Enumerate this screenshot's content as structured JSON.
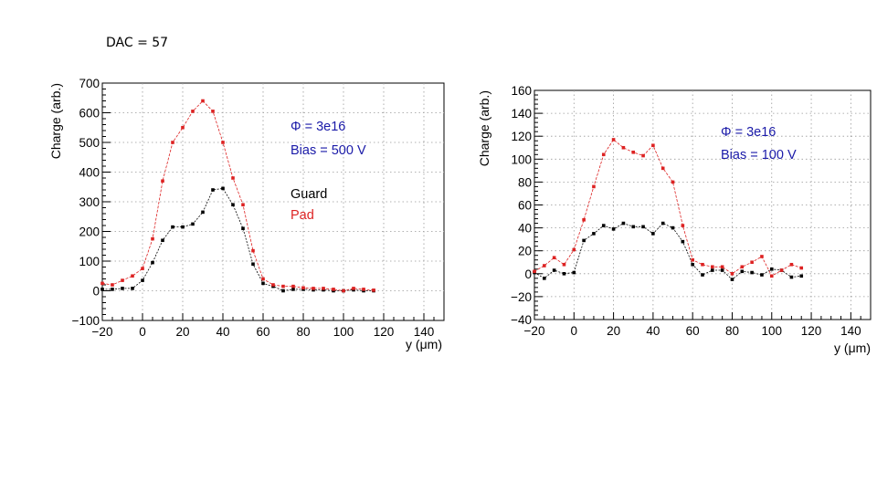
{
  "slide": {
    "label": "DAC = 57"
  },
  "chart_data": [
    {
      "type": "line",
      "title": "",
      "xlabel": "y (μm)",
      "ylabel": "Charge (arb.)",
      "xlim": [
        -20,
        150
      ],
      "ylim": [
        -100,
        700
      ],
      "xticks": [
        -20,
        0,
        20,
        40,
        60,
        80,
        100,
        120,
        140
      ],
      "yticks": [
        -100,
        0,
        100,
        200,
        300,
        400,
        500,
        600,
        700
      ],
      "grid": true,
      "annotations": [
        {
          "text": "Φ = 3e16",
          "color": "#1a1aa8"
        },
        {
          "text": "Bias = 500 V",
          "color": "#1a1aa8"
        }
      ],
      "legend": [
        "Guard",
        "Pad"
      ],
      "series": [
        {
          "name": "Guard",
          "color": "#000000",
          "x": [
            -20,
            -15,
            -10,
            -5,
            0,
            5,
            10,
            15,
            20,
            25,
            30,
            35,
            40,
            45,
            50,
            55,
            60,
            65,
            70,
            75,
            80,
            85,
            90,
            95,
            100,
            105,
            110,
            115
          ],
          "y": [
            5,
            5,
            8,
            8,
            35,
            95,
            170,
            215,
            215,
            225,
            265,
            340,
            345,
            290,
            210,
            90,
            25,
            15,
            0,
            5,
            5,
            3,
            3,
            0,
            0,
            3,
            0,
            0
          ]
        },
        {
          "name": "Pad",
          "color": "#dd2222",
          "x": [
            -20,
            -15,
            -10,
            -5,
            0,
            5,
            10,
            15,
            20,
            25,
            30,
            35,
            40,
            45,
            50,
            55,
            60,
            65,
            70,
            75,
            80,
            85,
            90,
            95,
            100,
            105,
            110,
            115
          ],
          "y": [
            25,
            20,
            35,
            50,
            75,
            175,
            370,
            500,
            550,
            605,
            640,
            605,
            500,
            380,
            290,
            135,
            40,
            20,
            15,
            15,
            10,
            8,
            8,
            5,
            0,
            8,
            5,
            2
          ]
        }
      ]
    },
    {
      "type": "line",
      "title": "",
      "xlabel": "y (μm)",
      "ylabel": "Charge (arb.)",
      "xlim": [
        -20,
        150
      ],
      "ylim": [
        -40,
        160
      ],
      "xticks": [
        -20,
        0,
        20,
        40,
        60,
        80,
        100,
        120,
        140
      ],
      "yticks": [
        -40,
        -20,
        0,
        20,
        40,
        60,
        80,
        100,
        120,
        140,
        160
      ],
      "grid": true,
      "annotations": [
        {
          "text": "Φ = 3e16",
          "color": "#1a1aa8"
        },
        {
          "text": "Bias = 100 V",
          "color": "#1a1aa8"
        }
      ],
      "series": [
        {
          "name": "Guard",
          "color": "#000000",
          "x": [
            -20,
            -15,
            -10,
            -5,
            0,
            5,
            10,
            15,
            20,
            25,
            30,
            35,
            40,
            45,
            50,
            55,
            60,
            65,
            70,
            75,
            80,
            85,
            90,
            95,
            100,
            105,
            110,
            115
          ],
          "y": [
            1,
            -4,
            3,
            0,
            1,
            29,
            35,
            42,
            39,
            44,
            41,
            41,
            35,
            44,
            40,
            28,
            8,
            -1,
            3,
            3,
            -5,
            2,
            1,
            -1,
            4,
            3,
            -3,
            -2
          ]
        },
        {
          "name": "Pad",
          "color": "#dd2222",
          "x": [
            -20,
            -15,
            -10,
            -5,
            0,
            5,
            10,
            15,
            20,
            25,
            30,
            35,
            40,
            45,
            50,
            55,
            60,
            65,
            70,
            75,
            80,
            85,
            90,
            95,
            100,
            105,
            110,
            115
          ],
          "y": [
            2,
            7,
            14,
            8,
            21,
            47,
            76,
            104,
            117,
            110,
            106,
            103,
            112,
            92,
            80,
            42,
            12,
            8,
            6,
            6,
            0,
            6,
            10,
            15,
            -2,
            3,
            8,
            5
          ]
        }
      ]
    }
  ]
}
